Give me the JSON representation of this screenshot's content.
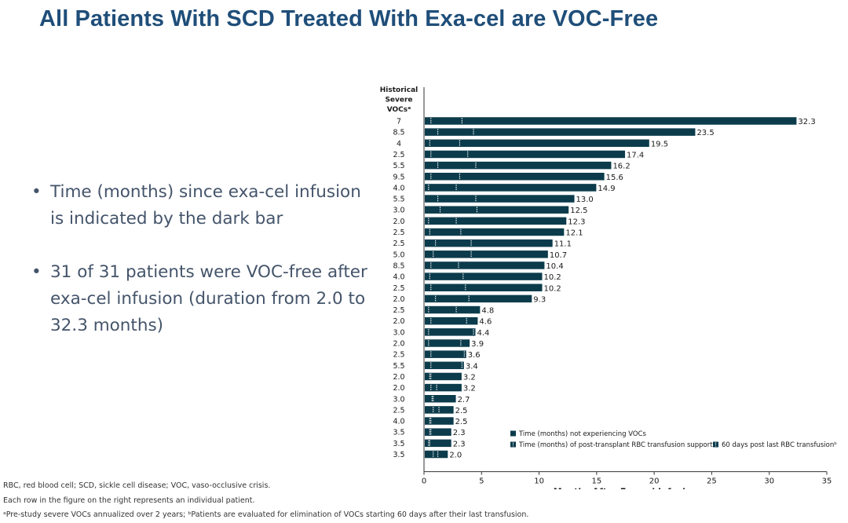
{
  "title": "All Patients With SCD Treated With Exa-cel are VOC-Free",
  "bullets": [
    "Time (months) since exa-cel infusion is indicated by the dark bar",
    "31 of 31 patients were VOC-free after exa-cel infusion (duration from 2.0 to 32.3 months)"
  ],
  "footnotes": [
    "RBC, red blood cell; SCD, sickle cell disease; VOC, vaso-occlusive crisis.",
    "Each row in the figure on the right represents an individual patient.",
    "ᵃPre-study severe VOCs annualized over 2 years; ᵇPatients are evaluated for elimination of VOCs starting 60 days after their last transfusion."
  ],
  "colors": {
    "title": "#1f4e79",
    "bar": "#0c3c4c",
    "text": "#44546a"
  },
  "chart_data": {
    "type": "bar",
    "orientation": "horizontal",
    "row_header": [
      "Historical",
      "Severe",
      "VOCsᵃ"
    ],
    "xlabel": "Months After Exa-cel Infusion",
    "xlim": [
      0,
      35
    ],
    "xticks": [
      0,
      5,
      10,
      15,
      20,
      25,
      30,
      35
    ],
    "grid": false,
    "legend_position": "bottom-right",
    "legend": [
      "Time (months) not experiencing VOCs",
      "Time (months) of post-transplant RBC transfusion support",
      "60 days post last RBC transfusionᵇ"
    ],
    "historical_vocs": [
      "7",
      "8.5",
      "4",
      "2.5",
      "5.5",
      "9.5",
      "4.0",
      "5.5",
      "3.0",
      "2.0",
      "2.5",
      "2.5",
      "5.0",
      "8.5",
      "4.0",
      "2.5",
      "2.0",
      "2.5",
      "2.0",
      "3.0",
      "2.0",
      "2.5",
      "5.5",
      "2.0",
      "2.0",
      "3.0",
      "2.5",
      "4.0",
      "3.5",
      "3.5",
      "3.5"
    ],
    "values": [
      32.3,
      23.5,
      19.5,
      17.4,
      16.2,
      15.6,
      14.9,
      13.0,
      12.5,
      12.3,
      12.1,
      11.1,
      10.7,
      10.4,
      10.2,
      10.2,
      9.3,
      4.8,
      4.6,
      4.4,
      3.9,
      3.6,
      3.4,
      3.2,
      3.2,
      2.7,
      2.5,
      2.5,
      2.3,
      2.3,
      2.0
    ],
    "value_labels": [
      "32.3",
      "23.5",
      "19.5",
      "17.4",
      "16.2",
      "15.6",
      "14.9",
      "13.0",
      "12.5",
      "12.3",
      "12.1",
      "11.1",
      "10.7",
      "10.4",
      "10.2",
      "10.2",
      "9.3",
      "4.8",
      "4.6",
      "4.4",
      "3.9",
      "3.6",
      "3.4",
      "3.2",
      "3.2",
      "2.7",
      "2.5",
      "2.5",
      "2.3",
      "2.3",
      "2.0"
    ],
    "transfusion_support_end": [
      0.6,
      1.2,
      0.5,
      0.6,
      1.2,
      0.6,
      0.4,
      1.2,
      1.4,
      0.4,
      0.5,
      1.0,
      0.8,
      0.6,
      0.5,
      0.6,
      1.0,
      0.4,
      0.6,
      0.4,
      0.4,
      0.6,
      0.6,
      0.5,
      0.6,
      0.8,
      0.8,
      0.6,
      0.6,
      0.5,
      0.8
    ],
    "post_60_days": [
      3.3,
      4.3,
      3.1,
      3.8,
      4.5,
      3.1,
      2.8,
      4.5,
      4.6,
      2.8,
      3.2,
      4.1,
      4.1,
      3.0,
      3.4,
      3.6,
      3.9,
      2.8,
      3.7,
      4.3,
      3.2,
      3.5,
      3.3,
      0.6,
      1.1,
      0.7,
      1.3,
      0.5,
      0.5,
      0.4,
      1.2
    ]
  }
}
